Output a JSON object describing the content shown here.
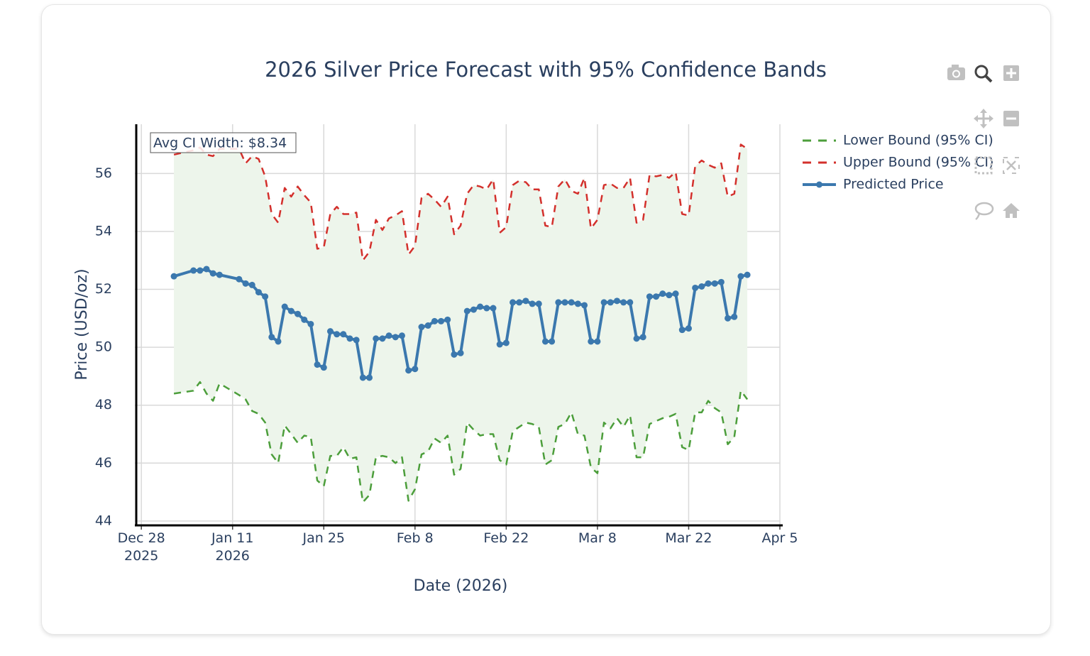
{
  "chart_data": {
    "type": "line",
    "title": "2026 Silver Price Forecast with 95% Confidence Bands",
    "x_label": "Date (2026)",
    "y_label": "Price (USD/oz)",
    "annotation": "Avg CI Width: $8.34",
    "x": [
      "2026-01-02",
      "2026-01-05",
      "2026-01-06",
      "2026-01-07",
      "2026-01-08",
      "2026-01-09",
      "2026-01-12",
      "2026-01-13",
      "2026-01-14",
      "2026-01-15",
      "2026-01-16",
      "2026-01-17",
      "2026-01-18",
      "2026-01-19",
      "2026-01-20",
      "2026-01-21",
      "2026-01-22",
      "2026-01-23",
      "2026-01-24",
      "2026-01-25",
      "2026-01-26",
      "2026-01-27",
      "2026-01-28",
      "2026-01-29",
      "2026-01-30",
      "2026-01-31",
      "2026-02-01",
      "2026-02-02",
      "2026-02-03",
      "2026-02-04",
      "2026-02-05",
      "2026-02-06",
      "2026-02-07",
      "2026-02-08",
      "2026-02-09",
      "2026-02-10",
      "2026-02-11",
      "2026-02-12",
      "2026-02-13",
      "2026-02-14",
      "2026-02-15",
      "2026-02-16",
      "2026-02-17",
      "2026-02-18",
      "2026-02-19",
      "2026-02-20",
      "2026-02-21",
      "2026-02-22",
      "2026-02-23",
      "2026-02-24",
      "2026-02-25",
      "2026-02-26",
      "2026-02-27",
      "2026-02-28",
      "2026-03-01",
      "2026-03-02",
      "2026-03-03",
      "2026-03-04",
      "2026-03-05",
      "2026-03-06",
      "2026-03-07",
      "2026-03-08",
      "2026-03-09",
      "2026-03-10",
      "2026-03-11",
      "2026-03-12",
      "2026-03-13",
      "2026-03-14",
      "2026-03-15",
      "2026-03-16",
      "2026-03-17",
      "2026-03-18",
      "2026-03-19",
      "2026-03-20",
      "2026-03-21",
      "2026-03-22",
      "2026-03-23",
      "2026-03-24",
      "2026-03-25",
      "2026-03-26",
      "2026-03-27",
      "2026-03-28",
      "2026-03-29",
      "2026-03-30",
      "2026-03-31"
    ],
    "series": [
      {
        "name": "Lower Bound (95% CI)",
        "color": "#4c9e3b",
        "dash": true,
        "markers": false,
        "values": [
          48.4,
          48.5,
          48.8,
          48.4,
          48.15,
          48.75,
          48.35,
          48.2,
          47.8,
          47.7,
          47.4,
          46.3,
          46.0,
          47.3,
          47.0,
          46.7,
          46.95,
          46.9,
          45.4,
          45.2,
          46.25,
          46.25,
          46.55,
          46.15,
          46.2,
          44.65,
          44.9,
          46.2,
          46.25,
          46.2,
          46.0,
          46.2,
          44.7,
          45.1,
          46.3,
          46.4,
          46.85,
          46.7,
          46.95,
          45.6,
          45.8,
          47.4,
          47.15,
          46.95,
          47.0,
          47.0,
          46.1,
          45.95,
          47.1,
          47.25,
          47.4,
          47.35,
          47.25,
          45.95,
          46.1,
          47.25,
          47.35,
          47.75,
          47.0,
          46.95,
          45.85,
          45.65,
          47.4,
          47.2,
          47.55,
          47.25,
          47.65,
          46.2,
          46.2,
          47.35,
          47.45,
          47.55,
          47.6,
          47.7,
          46.55,
          46.45,
          47.75,
          47.75,
          48.15,
          47.9,
          47.75,
          46.65,
          46.9,
          48.5,
          48.2
        ]
      },
      {
        "name": "Upper Bound (95% CI)",
        "color": "#d3302c",
        "dash": true,
        "markers": false,
        "values": [
          56.65,
          56.8,
          56.9,
          56.65,
          56.6,
          56.85,
          56.85,
          56.35,
          56.6,
          56.5,
          55.9,
          54.6,
          54.3,
          55.5,
          55.2,
          55.55,
          55.25,
          55.0,
          53.4,
          53.45,
          54.6,
          54.85,
          54.6,
          54.6,
          54.65,
          53.0,
          53.3,
          54.4,
          54.05,
          54.45,
          54.55,
          54.7,
          53.2,
          53.5,
          55.15,
          55.3,
          55.1,
          54.85,
          55.2,
          53.9,
          54.2,
          55.3,
          55.6,
          55.55,
          55.45,
          55.8,
          53.95,
          54.15,
          55.6,
          55.75,
          55.7,
          55.45,
          55.45,
          54.2,
          54.15,
          55.55,
          55.8,
          55.4,
          55.3,
          55.85,
          54.1,
          54.4,
          55.6,
          55.65,
          55.5,
          55.5,
          55.85,
          54.3,
          54.4,
          55.95,
          55.9,
          55.95,
          55.85,
          56.05,
          54.6,
          54.55,
          56.25,
          56.45,
          56.3,
          56.2,
          56.35,
          55.2,
          55.3,
          57.0,
          56.85
        ]
      },
      {
        "name": "Predicted Price",
        "color": "#3b78ae",
        "dash": false,
        "markers": true,
        "values": [
          52.45,
          52.65,
          52.65,
          52.7,
          52.55,
          52.5,
          52.35,
          52.2,
          52.15,
          51.9,
          51.75,
          50.35,
          50.2,
          51.4,
          51.25,
          51.15,
          50.95,
          50.8,
          49.4,
          49.3,
          50.55,
          50.45,
          50.45,
          50.3,
          50.25,
          48.95,
          48.95,
          50.3,
          50.3,
          50.4,
          50.35,
          50.4,
          49.2,
          49.25,
          50.7,
          50.75,
          50.9,
          50.9,
          50.95,
          49.75,
          49.8,
          51.25,
          51.3,
          51.4,
          51.35,
          51.35,
          50.1,
          50.15,
          51.55,
          51.55,
          51.6,
          51.5,
          51.5,
          50.2,
          50.2,
          51.55,
          51.55,
          51.55,
          51.5,
          51.45,
          50.2,
          50.2,
          51.55,
          51.55,
          51.6,
          51.55,
          51.55,
          50.3,
          50.35,
          51.75,
          51.75,
          51.85,
          51.8,
          51.85,
          50.6,
          50.65,
          52.05,
          52.1,
          52.2,
          52.2,
          52.25,
          51.0,
          51.05,
          52.45,
          52.5
        ]
      }
    ],
    "band_color": "#edf5eb",
    "xlim": [
      "2025-12-27",
      "2026-04-05"
    ],
    "xticks": [
      {
        "value": "2025-12-28",
        "label": "Dec 28\n2025"
      },
      {
        "value": "2026-01-11",
        "label": "Jan 11\n2026"
      },
      {
        "value": "2026-01-25",
        "label": "Jan 25"
      },
      {
        "value": "2026-02-08",
        "label": "Feb 8"
      },
      {
        "value": "2026-02-22",
        "label": "Feb 22"
      },
      {
        "value": "2026-03-08",
        "label": "Mar 8"
      },
      {
        "value": "2026-03-22",
        "label": "Mar 22"
      },
      {
        "value": "2026-04-05",
        "label": "Apr 5"
      }
    ],
    "ylim": [
      43.85,
      57.7
    ],
    "yticks": [
      44,
      46,
      48,
      50,
      52,
      54,
      56
    ],
    "grid": true
  }
}
